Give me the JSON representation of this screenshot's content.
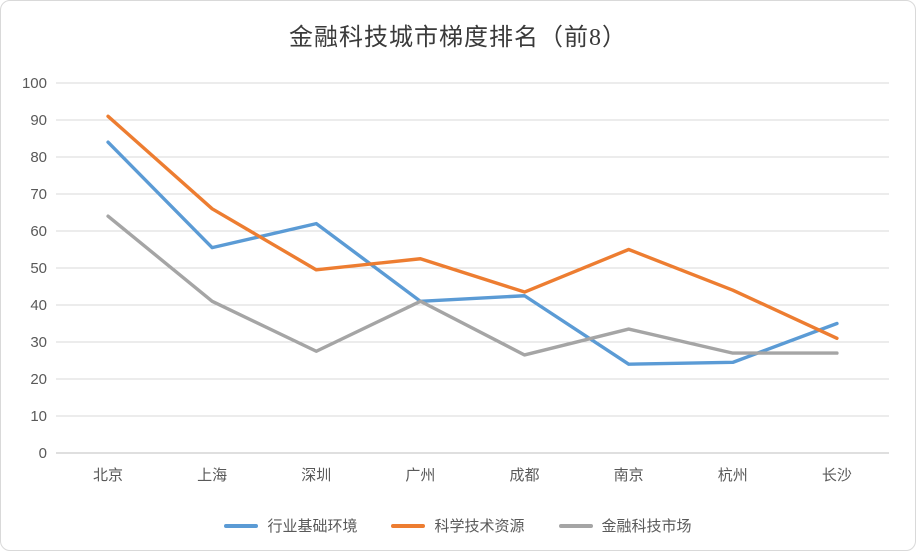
{
  "title": "金融科技城市梯度排名（前8）",
  "chart_data": {
    "type": "line",
    "title": "金融科技城市梯度排名（前8）",
    "categories": [
      "北京",
      "上海",
      "深圳",
      "广州",
      "成都",
      "南京",
      "杭州",
      "长沙"
    ],
    "series": [
      {
        "name": "行业基础环境",
        "color": "#5B9BD5",
        "values": [
          84,
          55.5,
          62,
          41,
          42.5,
          24,
          24.5,
          35
        ]
      },
      {
        "name": "科学技术资源",
        "color": "#ED7D31",
        "values": [
          91,
          66,
          49.5,
          52.5,
          43.5,
          55,
          44,
          31
        ]
      },
      {
        "name": "金融科技市场",
        "color": "#A5A5A5",
        "values": [
          64,
          41,
          27.5,
          41,
          26.5,
          33.5,
          27,
          27
        ]
      }
    ],
    "xlabel": "",
    "ylabel": "",
    "ylim": [
      0,
      100
    ],
    "ytick_step": 10,
    "grid": true,
    "legend_position": "bottom",
    "gridline_color": "#D9D9D9",
    "axis_color": "#BFBFBF"
  }
}
